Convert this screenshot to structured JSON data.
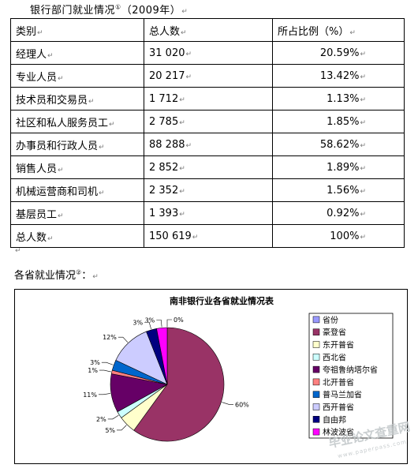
{
  "doc": {
    "title": "银行部门就业情况",
    "title_note": "①",
    "title_year": "（2009年）",
    "para_mark": "↵",
    "section_title": "各省就业情况",
    "section_note": "②",
    "section_suffix": "："
  },
  "table": {
    "header": {
      "category": "类别",
      "total": "总人数",
      "share": "所占比例（%）"
    },
    "rows": [
      {
        "category": "经理人",
        "total": "31 020",
        "share": "20.59%"
      },
      {
        "category": "专业人员",
        "total": "20 217",
        "share": "13.42%"
      },
      {
        "category": "技术员和交易员",
        "total": "1 712",
        "share": "1.13%"
      },
      {
        "category": "社区和私人服务员工",
        "total": "2 785",
        "share": "1.85%"
      },
      {
        "category": "办事员和行政人员",
        "total": "88 288",
        "share": "58.62%"
      },
      {
        "category": "销售人员",
        "total": "2 852",
        "share": "1.89%"
      },
      {
        "category": "机械运营商和司机",
        "total": "2 352",
        "share": "1.56%"
      },
      {
        "category": "基层员工",
        "total": "1 393",
        "share": "0.92%"
      },
      {
        "category": "总人数",
        "total": "150 619",
        "share": "100%"
      }
    ]
  },
  "chart_data": {
    "type": "pie",
    "title": "南非银行业各省就业情况表",
    "legend_position": "right",
    "categories": [
      "省份",
      "豪登省",
      "东开普省",
      "西北省",
      "夸祖鲁纳塔尔省",
      "北开普省",
      "普马兰加省",
      "西开普省",
      "自由邦",
      "林波波省"
    ],
    "values": [
      0,
      60,
      5,
      2,
      11,
      1,
      3,
      12,
      3,
      3
    ],
    "data_labels": [
      "0%",
      "60%",
      "5%",
      "2%",
      "11%",
      "1%",
      "3%",
      "12%",
      "3%",
      "3%"
    ],
    "colors": [
      "#9999ff",
      "#993366",
      "#ffffcc",
      "#ccffff",
      "#660066",
      "#ff8080",
      "#0066cc",
      "#ccccff",
      "#000080",
      "#ff00ff"
    ]
  },
  "watermark": {
    "main": "毕业论文查重网",
    "sub": "www.paperpass.com"
  }
}
